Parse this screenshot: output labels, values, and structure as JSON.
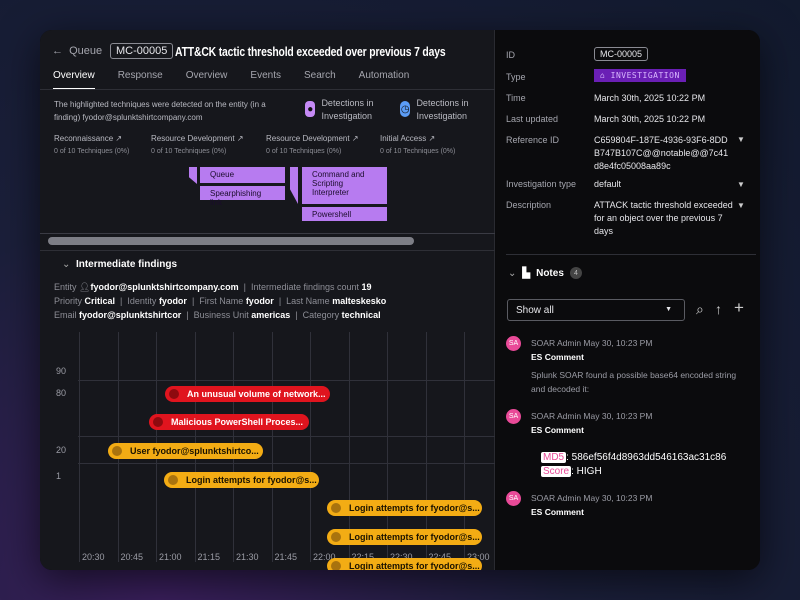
{
  "header": {
    "back_label": "Queue",
    "id": "MC-00005",
    "title": "ATT&CK tactic threshold exceeded over previous 7 days"
  },
  "tabs": [
    "Overview",
    "Response",
    "Overview",
    "Events",
    "Search",
    "Automation"
  ],
  "active_tab": 0,
  "mitre": {
    "description": "The highlighted techniques were detected on the entity (in a finding) fyodor@splunktshirtcompany.com",
    "legend": [
      {
        "label": "Detections in Investigation",
        "icon": "keyhole-icon",
        "color": "#c58af5"
      },
      {
        "label": "Detections in Investigation",
        "icon": "clock-icon",
        "color": "#5b9cf5"
      }
    ],
    "tactics": [
      {
        "name": "Reconnaissance",
        "count": "0 of 10 Techniques (0%)"
      },
      {
        "name": "Resource Development",
        "count": "0 of 10 Techniques (0%)"
      },
      {
        "name": "Resource Development",
        "count": "0 of 10 Techniques (0%)"
      },
      {
        "name": "Initial Access",
        "count": "0 of 10 Techniques (0%)"
      }
    ],
    "techniques": [
      "Queue",
      "Spearphishing link",
      "Command and Scripting Interpreter",
      "Powershell"
    ]
  },
  "findings": {
    "section_title": "Intermediate findings",
    "entity_label": "Entity",
    "entity": "fyodor@splunktshirtcompany.com",
    "count_label": "Intermediate findings count",
    "count": "19",
    "priority_label": "Priority",
    "priority": "Critical",
    "identity_label": "Identity",
    "identity": "fyodor",
    "first_label": "First Name",
    "first": "fyodor",
    "last_label": "Last Name",
    "last": "malteskesko",
    "email_label": "Email",
    "email": "fyodor@splunktshirtcor",
    "bu_label": "Business Unit",
    "bu": "americas",
    "cat_label": "Category",
    "cat": "technical"
  },
  "timeline": {
    "y_labels": [
      "90",
      "80",
      "20",
      "1"
    ],
    "x_labels": [
      "20:30",
      "20:45",
      "21:00",
      "21:15",
      "21:30",
      "21:45",
      "22:00",
      "22:15",
      "22:30",
      "22:45",
      "23:00"
    ],
    "items": [
      {
        "label": "An unusual volume of network...",
        "severity": "red"
      },
      {
        "label": "Malicious PowerShell Proces...",
        "severity": "red"
      },
      {
        "label": "User fyodor@splunktshirtco...",
        "severity": "yellow"
      },
      {
        "label": "Login attempts for fyodor@s...",
        "severity": "yellow"
      },
      {
        "label": "Login attempts for fyodor@s...",
        "severity": "yellow"
      },
      {
        "label": "Login attempts for fyodor@s...",
        "severity": "yellow"
      },
      {
        "label": "Login attempts for fyodor@s...",
        "severity": "yellow"
      }
    ],
    "colors": {
      "red": "#e0141e",
      "yellow": "#f3ac14"
    }
  },
  "details": {
    "id_label": "ID",
    "id": "MC-00005",
    "type_label": "Type",
    "type": "INVESTIGATION",
    "time_label": "Time",
    "time": "March 30th, 2025 10:22 PM",
    "updated_label": "Last updated",
    "updated": "March 30th, 2025 10:22 PM",
    "ref_label": "Reference ID",
    "ref": "C659804F-187E-4936-93F6-8DDB747B107C@@notable@@7c41d8e4fc05008aa89c",
    "invtype_label": "Investigation type",
    "invtype": "default",
    "desc_label": "Description",
    "desc": "ATTACK tactic threshold exceeded for an object over the previous 7 days"
  },
  "notes": {
    "title": "Notes",
    "count": "4",
    "filter": "Show all",
    "items": [
      {
        "avatar": "SA",
        "header": "SOAR Admin May 30, 10:23 PM",
        "title": "ES Comment",
        "body": "Splunk SOAR found a possible base64 encoded string and decoded it:"
      },
      {
        "avatar": "SA",
        "header": "SOAR Admin May 30, 10:23 PM",
        "title": "ES Comment",
        "md5_label": "MD5",
        "md5": ": 586ef56f4d8963dd546163ac31c86",
        "score_label": "Score",
        "score": ": HIGH"
      },
      {
        "avatar": "SA",
        "header": "SOAR Admin May 30, 10:23 PM",
        "title": "ES Comment"
      }
    ]
  }
}
